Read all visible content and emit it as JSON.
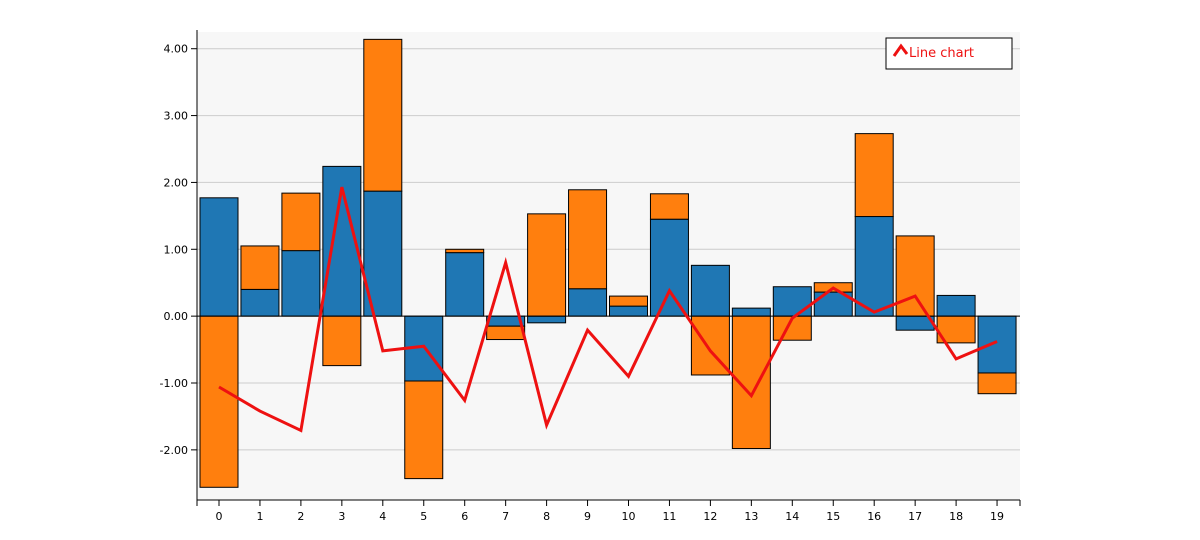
{
  "chart_data": {
    "type": "bar",
    "stacked": true,
    "categories": [
      "0",
      "1",
      "2",
      "3",
      "4",
      "5",
      "6",
      "7",
      "8",
      "9",
      "10",
      "11",
      "12",
      "13",
      "14",
      "15",
      "16",
      "17",
      "18",
      "19"
    ],
    "series": [
      {
        "type": "bar",
        "color": "#1f77b4",
        "values": [
          1.77,
          0.4,
          0.98,
          2.24,
          1.87,
          -0.97,
          0.95,
          -0.15,
          -0.1,
          0.41,
          0.15,
          1.45,
          0.76,
          0.12,
          0.44,
          0.36,
          1.49,
          -0.21,
          0.31,
          -0.85
        ]
      },
      {
        "type": "bar",
        "color": "#ff7f0e",
        "values": [
          -2.56,
          0.65,
          0.86,
          -0.74,
          2.27,
          -1.46,
          0.05,
          -0.2,
          1.53,
          1.48,
          0.15,
          0.38,
          -0.88,
          -1.98,
          -0.36,
          0.14,
          1.24,
          1.2,
          -0.4,
          -0.31
        ]
      },
      {
        "type": "line",
        "name": "Line chart",
        "color": "#ee1111",
        "values": [
          -1.06,
          -1.42,
          -1.71,
          1.93,
          -0.52,
          -0.45,
          -1.26,
          0.8,
          -1.63,
          -0.21,
          -0.9,
          0.38,
          -0.52,
          -1.19,
          -0.03,
          0.42,
          0.06,
          0.3,
          -0.64,
          -0.38
        ]
      }
    ],
    "yticks": [
      -2.0,
      -1.0,
      0.0,
      1.0,
      2.0,
      3.0,
      4.0
    ],
    "ytick_labels": [
      "-2.00",
      "-1.00",
      "0.00",
      "1.00",
      "2.00",
      "3.00",
      "4.00"
    ],
    "ylim": [
      -2.75,
      4.25
    ],
    "grid": true,
    "legend": {
      "placement": "top-right",
      "entries": [
        "Line chart"
      ]
    },
    "colors": {
      "plot_background": "#f7f7f7",
      "grid": "#cccccc",
      "bar_stroke": "#000000"
    }
  }
}
